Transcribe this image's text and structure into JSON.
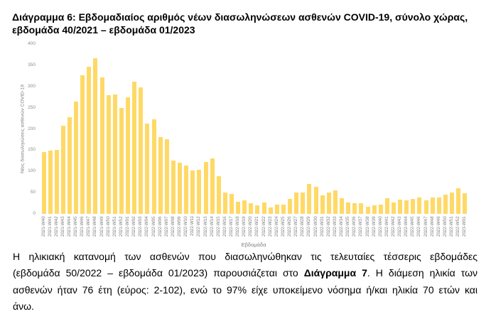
{
  "document": {
    "title_lines": [
      "Διάγραμμα 6: Εβδομαδιαίος αριθμός νέων διασωληνώσεων ασθενών COVID-19, σύνολο χώρας,",
      "εβδομάδα 40/2021 – εβδομάδα 01/2023"
    ],
    "paragraph": {
      "line1": "Η ηλικιακή κατανομή των ασθενών που διασωληνώθηκαν τις τελευταίες τέσσερις εβδομάδες",
      "line2_pre": "(εβδομάδα 50/2022 – εβδομάδα 01/2023) παρουσιάζεται στο ",
      "line2_bold": "Διάγραμμα 7",
      "line2_post": ". Η διάμεση ηλικία των",
      "line3": "ασθενών ήταν 76 έτη (εύρος: 2-102), ενώ το 97% είχε υποκείμενο νόσημα ή/και ηλικία 70 ετών και",
      "line4": "άνω."
    }
  },
  "chart_data": {
    "type": "bar",
    "title": "Διάγραμμα 6: Εβδομαδιαίος αριθμός νέων διασωληνώσεων ασθενών COVID-19, σύνολο χώρας, εβδομάδα 40/2021 – εβδομάδα 01/2023",
    "xlabel": "Εβδομάδα",
    "ylabel": "Νέες διασωληνώσεις ασθενών COVID-19",
    "ylim": [
      0,
      400
    ],
    "yticks": [
      0,
      50,
      100,
      150,
      200,
      250,
      300,
      350,
      400
    ],
    "grid": false,
    "legend": null,
    "bar_color": "#FFD966",
    "categories": [
      "2021-W40",
      "2021-W41",
      "2021-W42",
      "2021-W43",
      "2021-W44",
      "2021-W45",
      "2021-W46",
      "2021-W47",
      "2021-W48",
      "2021-W49",
      "2021-W50",
      "2021-W51",
      "2021-W52",
      "2022-W01",
      "2022-W02",
      "2022-W03",
      "2022-W04",
      "2022-W05",
      "2022-W06",
      "2022-W07",
      "2022-W08",
      "2022-W09",
      "2022-W10",
      "2022-W11",
      "2022-W12",
      "2022-W13",
      "2022-W14",
      "2022-W15",
      "2022-W16",
      "2022-W17",
      "2022-W18",
      "2022-W19",
      "2022-W20",
      "2022-W21",
      "2022-W22",
      "2022-W23",
      "2022-W24",
      "2022-W25",
      "2022-W26",
      "2022-W27",
      "2022-W28",
      "2022-W29",
      "2022-W30",
      "2022-W31",
      "2022-W32",
      "2022-W33",
      "2022-W34",
      "2022-W35",
      "2022-W36",
      "2022-W37",
      "2022-W38",
      "2022-W39",
      "2022-W40",
      "2022-W41",
      "2022-W42",
      "2022-W43",
      "2022-W44",
      "2022-W45",
      "2022-W46",
      "2022-W47",
      "2022-W48",
      "2022-W49",
      "2022-W50",
      "2022-W51",
      "2022-W52",
      "2023-W01"
    ],
    "values": [
      145,
      149,
      151,
      208,
      227,
      265,
      327,
      347,
      367,
      322,
      280,
      281,
      249,
      275,
      312,
      298,
      213,
      223,
      180,
      176,
      125,
      120,
      113,
      102,
      104,
      122,
      131,
      89,
      51,
      47,
      28,
      32,
      25,
      20,
      26,
      15,
      22,
      22,
      35,
      50,
      50,
      70,
      64,
      43,
      51,
      56,
      37,
      27,
      25,
      25,
      17,
      20,
      21,
      37,
      27,
      33,
      32,
      35,
      38,
      32,
      38,
      38,
      45,
      51,
      60,
      49
    ]
  }
}
